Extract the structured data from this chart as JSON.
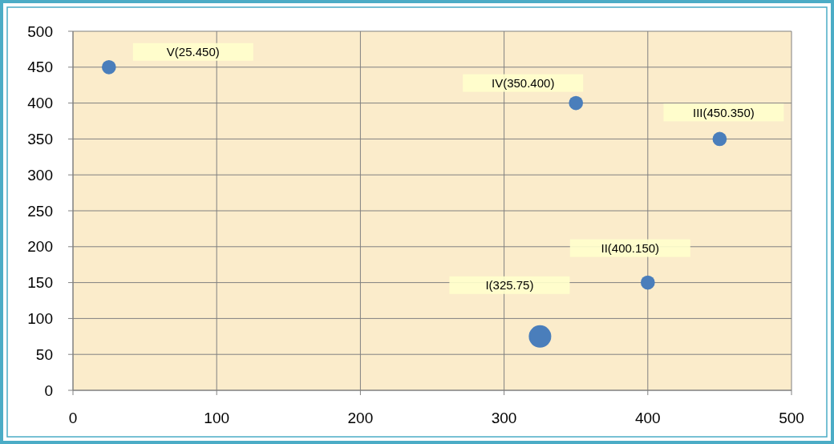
{
  "chart_data": {
    "type": "bubble",
    "x": [
      325,
      400,
      450,
      350,
      25
    ],
    "values": [
      75,
      150,
      350,
      400,
      450
    ],
    "sizes": [
      1,
      0.4,
      0.4,
      0.4,
      0.4
    ],
    "color": "#4a7ebb",
    "xlim": [
      0,
      500
    ],
    "xticks": [
      0,
      100,
      200,
      300,
      400,
      500
    ],
    "ylim": [
      0,
      500
    ],
    "yticks": [
      0,
      50,
      100,
      150,
      200,
      250,
      300,
      350,
      400,
      450,
      500
    ],
    "grid": true,
    "annotations": [
      "I(325.75)",
      "II(400.150)",
      "III(450.350)",
      "IV(350.400)",
      "V(25.450)"
    ]
  }
}
